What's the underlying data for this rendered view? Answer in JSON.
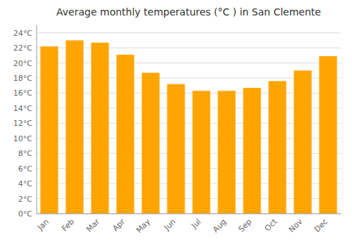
{
  "chart_data": {
    "type": "bar",
    "title": "Average monthly temperatures (°C ) in San Clemente",
    "categories": [
      "Jan",
      "Feb",
      "Mar",
      "Apr",
      "May",
      "Jun",
      "Jul",
      "Aug",
      "Sep",
      "Oct",
      "Nov",
      "Dec"
    ],
    "values": [
      22.2,
      23.0,
      22.7,
      21.1,
      18.7,
      17.2,
      16.3,
      16.3,
      16.7,
      17.6,
      19.0,
      20.9
    ],
    "color": "#FFA500",
    "ylim": [
      0,
      25
    ],
    "yticks": [
      {
        "value": 0,
        "label": "0°C"
      },
      {
        "value": 2,
        "label": "2°C"
      },
      {
        "value": 4,
        "label": "4°C"
      },
      {
        "value": 6,
        "label": "6°C"
      },
      {
        "value": 8,
        "label": "8°C"
      },
      {
        "value": 10,
        "label": "10°C"
      },
      {
        "value": 12,
        "label": "12°C"
      },
      {
        "value": 14,
        "label": "14°C"
      },
      {
        "value": 16,
        "label": "16°C"
      },
      {
        "value": 18,
        "label": "18°C"
      },
      {
        "value": 20,
        "label": "20°C"
      },
      {
        "value": 22,
        "label": "22°C"
      },
      {
        "value": 24,
        "label": "24°C"
      }
    ],
    "grid": true
  }
}
